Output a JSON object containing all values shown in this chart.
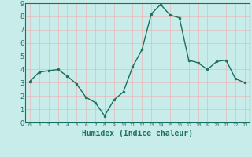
{
  "x": [
    0,
    1,
    2,
    3,
    4,
    5,
    6,
    7,
    8,
    9,
    10,
    11,
    12,
    13,
    14,
    15,
    16,
    17,
    18,
    19,
    20,
    21,
    22,
    23
  ],
  "y": [
    3.1,
    3.8,
    3.9,
    4.0,
    3.5,
    2.9,
    1.9,
    1.5,
    0.5,
    1.7,
    2.3,
    4.2,
    5.5,
    8.2,
    8.9,
    8.1,
    7.9,
    4.7,
    4.5,
    4.0,
    4.6,
    4.7,
    3.3,
    3.0
  ],
  "xlabel": "Humidex (Indice chaleur)",
  "ylim": [
    0,
    9
  ],
  "xlim": [
    -0.5,
    23.5
  ],
  "yticks": [
    0,
    1,
    2,
    3,
    4,
    5,
    6,
    7,
    8,
    9
  ],
  "xticks": [
    0,
    1,
    2,
    3,
    4,
    5,
    6,
    7,
    8,
    9,
    10,
    11,
    12,
    13,
    14,
    15,
    16,
    17,
    18,
    19,
    20,
    21,
    22,
    23
  ],
  "line_color": "#1a7060",
  "marker_color": "#1a7060",
  "bg_color": "#c8ecea",
  "grid_color_v": "#e8b8b8",
  "grid_color_h": "#e8b8b8",
  "axes_bg": "#c8ecea",
  "tick_color": "#1a7060",
  "xlabel_color": "#1a7060",
  "spine_color": "#1a7060"
}
